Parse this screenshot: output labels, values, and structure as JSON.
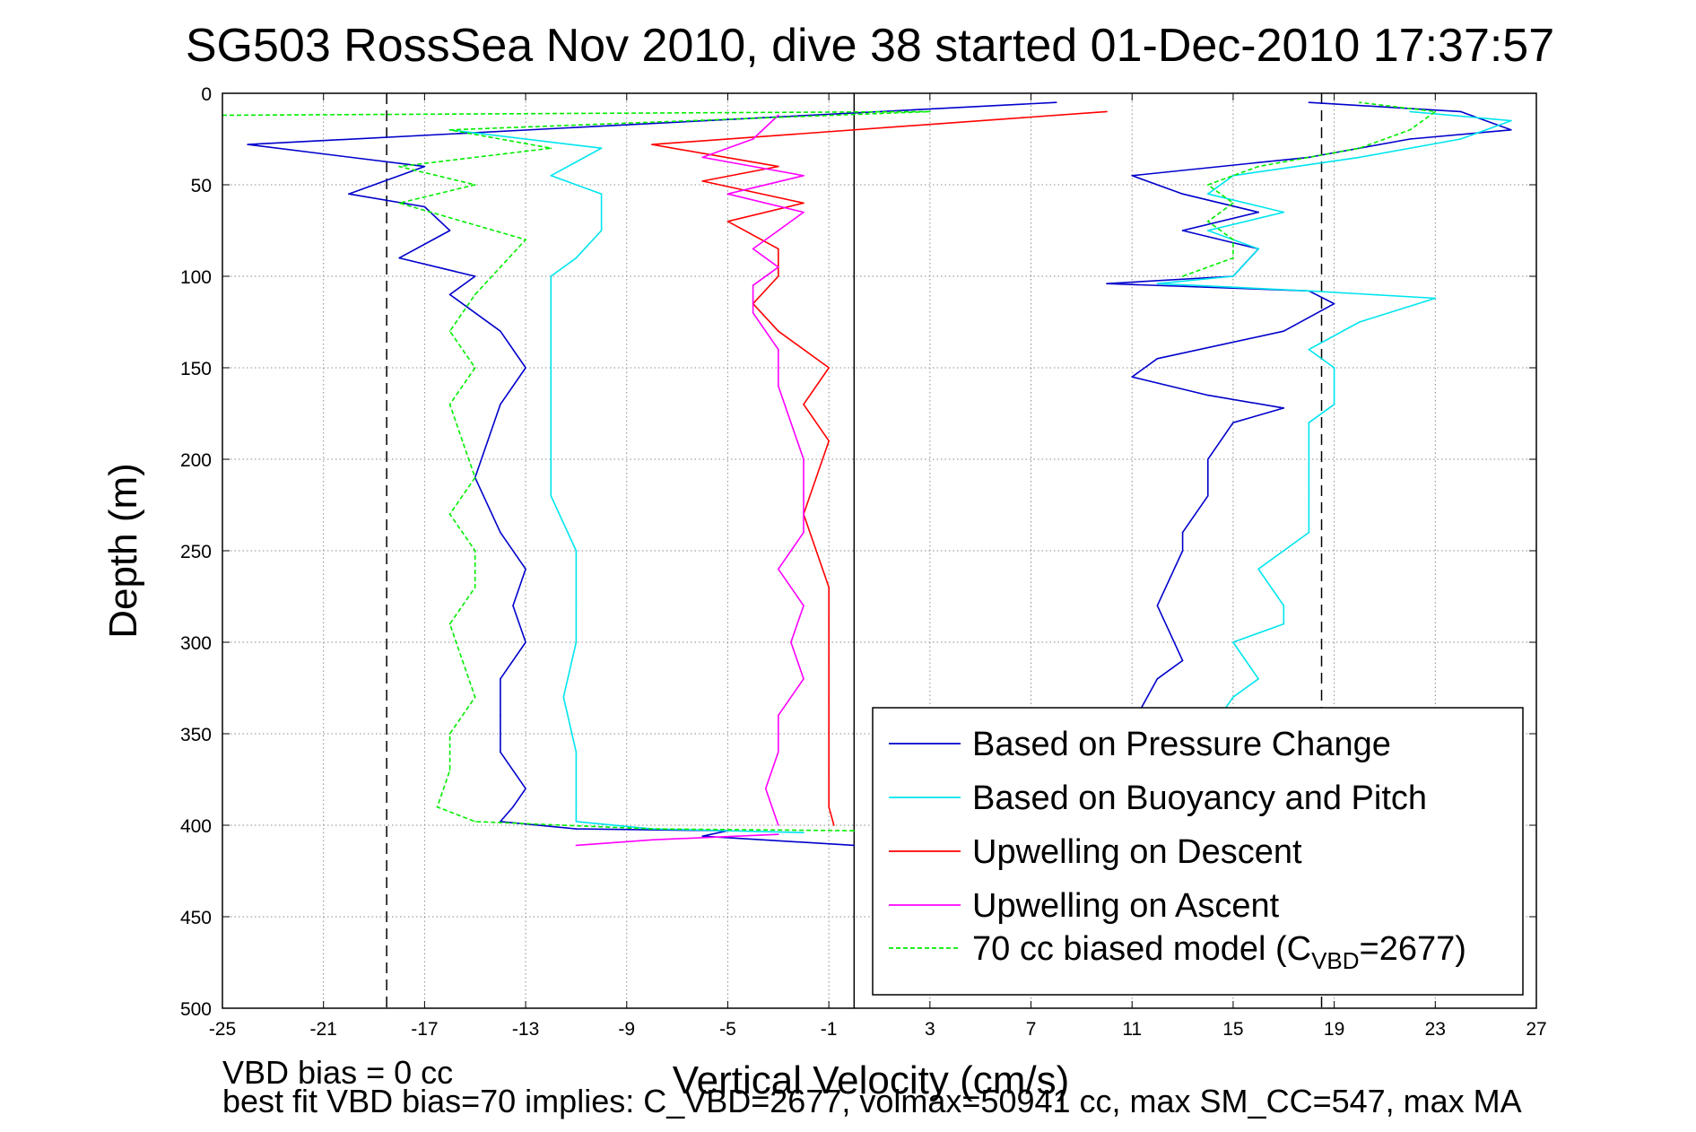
{
  "chart_data": {
    "type": "line",
    "title": "SG503 RossSea Nov 2010, dive 38 started 01-Dec-2010 17:37:57",
    "xlabel": "Vertical Velocity (cm/s)",
    "ylabel": "Depth (m)",
    "xlim": [
      -25,
      27
    ],
    "ylim": [
      500,
      0
    ],
    "y_reversed": true,
    "grid": true,
    "xticks": [
      "-25",
      "-21",
      "-17",
      "-13",
      "-9",
      "-5",
      "-1",
      "3",
      "7",
      "11",
      "15",
      "19",
      "23",
      "27"
    ],
    "yticks": [
      "0",
      "50",
      "100",
      "150",
      "200",
      "250",
      "300",
      "350",
      "400",
      "450",
      "500"
    ],
    "reference_lines": [
      {
        "x": -18.5,
        "style": "dashed",
        "color": "#000000"
      },
      {
        "x": 18.5,
        "style": "dashed",
        "color": "#000000"
      },
      {
        "x": 0,
        "style": "solid",
        "color": "#000000"
      }
    ],
    "legend_placement": "lower-right",
    "series": [
      {
        "name": "Based on Pressure Change",
        "color": "#0000cc",
        "dash": "solid",
        "leg": "down",
        "points": [
          [
            8,
            5
          ],
          [
            -24,
            28
          ],
          [
            -17,
            40
          ],
          [
            -20,
            55
          ],
          [
            -17,
            62
          ],
          [
            -16,
            75
          ],
          [
            -18,
            90
          ],
          [
            -15,
            100
          ],
          [
            -16,
            110
          ],
          [
            -14,
            130
          ],
          [
            -13,
            150
          ],
          [
            -14,
            170
          ],
          [
            -14.5,
            190
          ],
          [
            -15,
            210
          ],
          [
            -14,
            240
          ],
          [
            -13,
            260
          ],
          [
            -13.5,
            280
          ],
          [
            -13,
            300
          ],
          [
            -14,
            320
          ],
          [
            -14,
            340
          ],
          [
            -14,
            360
          ],
          [
            -13,
            380
          ],
          [
            -13.5,
            390
          ],
          [
            -14,
            398
          ],
          [
            -11,
            402
          ],
          [
            -5,
            403
          ],
          [
            -6,
            406
          ],
          [
            0,
            411
          ]
        ]
      },
      {
        "name": "Based on Pressure Change",
        "color": "#0000cc",
        "dash": "solid",
        "leg": "up",
        "points": [
          [
            11.2,
            340
          ],
          [
            12,
            320
          ],
          [
            13,
            310
          ],
          [
            12,
            280
          ],
          [
            13,
            250
          ],
          [
            13,
            240
          ],
          [
            14,
            220
          ],
          [
            14,
            200
          ],
          [
            15,
            180
          ],
          [
            17,
            172
          ],
          [
            14,
            165
          ],
          [
            11,
            155
          ],
          [
            12,
            145
          ],
          [
            17,
            130
          ],
          [
            19,
            115
          ],
          [
            18,
            108
          ],
          [
            10,
            104
          ],
          [
            15,
            100
          ],
          [
            16,
            85
          ],
          [
            13,
            75
          ],
          [
            16,
            65
          ],
          [
            13,
            55
          ],
          [
            11,
            45
          ],
          [
            18,
            35
          ],
          [
            22,
            25
          ],
          [
            26,
            20
          ],
          [
            24,
            10
          ],
          [
            18,
            5
          ]
        ]
      },
      {
        "name": "Based on Buoyancy and Pitch",
        "color": "#00e5ee",
        "dash": "solid",
        "leg": "down",
        "points": [
          [
            -16,
            20
          ],
          [
            -10,
            30
          ],
          [
            -12,
            45
          ],
          [
            -10,
            55
          ],
          [
            -10,
            75
          ],
          [
            -11,
            90
          ],
          [
            -12,
            100
          ],
          [
            -12,
            120
          ],
          [
            -12,
            140
          ],
          [
            -12,
            160
          ],
          [
            -12,
            190
          ],
          [
            -12,
            220
          ],
          [
            -11,
            250
          ],
          [
            -11,
            280
          ],
          [
            -11,
            300
          ],
          [
            -11.5,
            330
          ],
          [
            -11,
            360
          ],
          [
            -11,
            390
          ],
          [
            -11,
            398
          ],
          [
            -8,
            402
          ],
          [
            -2,
            404
          ]
        ]
      },
      {
        "name": "Based on Buoyancy and Pitch",
        "color": "#00e5ee",
        "dash": "solid",
        "leg": "up",
        "points": [
          [
            14.5,
            340
          ],
          [
            15,
            330
          ],
          [
            16,
            320
          ],
          [
            15,
            300
          ],
          [
            17,
            290
          ],
          [
            17,
            280
          ],
          [
            16,
            260
          ],
          [
            18,
            240
          ],
          [
            18,
            220
          ],
          [
            18,
            200
          ],
          [
            18,
            180
          ],
          [
            19,
            170
          ],
          [
            19,
            150
          ],
          [
            18,
            140
          ],
          [
            20,
            125
          ],
          [
            23,
            112
          ],
          [
            18,
            108
          ],
          [
            12,
            104
          ],
          [
            15,
            100
          ],
          [
            16,
            85
          ],
          [
            14,
            75
          ],
          [
            17,
            65
          ],
          [
            14,
            55
          ],
          [
            15,
            45
          ],
          [
            20,
            35
          ],
          [
            24,
            25
          ],
          [
            26,
            15
          ],
          [
            22,
            10
          ]
        ]
      },
      {
        "name": "Upwelling on Descent",
        "color": "#ff0000",
        "dash": "solid",
        "leg": "down",
        "points": [
          [
            10,
            10
          ],
          [
            -8,
            28
          ],
          [
            -3,
            40
          ],
          [
            -6,
            48
          ],
          [
            -2,
            60
          ],
          [
            -5,
            70
          ],
          [
            -3,
            85
          ],
          [
            -3,
            100
          ],
          [
            -4,
            115
          ],
          [
            -3,
            130
          ],
          [
            -1,
            150
          ],
          [
            -2,
            170
          ],
          [
            -1,
            190
          ],
          [
            -1.5,
            210
          ],
          [
            -2,
            230
          ],
          [
            -1.5,
            250
          ],
          [
            -1,
            270
          ],
          [
            -1,
            290
          ],
          [
            -1,
            310
          ],
          [
            -1,
            330
          ],
          [
            -1,
            350
          ],
          [
            -1,
            370
          ],
          [
            -1,
            390
          ],
          [
            -0.8,
            400
          ]
        ]
      },
      {
        "name": "Upwelling on Ascent",
        "color": "#ff00ff",
        "dash": "solid",
        "leg": "down",
        "points": [
          [
            -3,
            405
          ],
          [
            -8,
            408
          ],
          [
            -11,
            411
          ]
        ]
      },
      {
        "name": "Upwelling on Ascent",
        "color": "#ff00ff",
        "dash": "solid",
        "leg": "up",
        "points": [
          [
            -3,
            400
          ],
          [
            -3.5,
            380
          ],
          [
            -3,
            360
          ],
          [
            -3,
            340
          ],
          [
            -2,
            320
          ],
          [
            -2.5,
            300
          ],
          [
            -2,
            280
          ],
          [
            -3,
            260
          ],
          [
            -2,
            240
          ],
          [
            -2,
            220
          ],
          [
            -2,
            200
          ],
          [
            -2.5,
            180
          ],
          [
            -3,
            160
          ],
          [
            -3,
            140
          ],
          [
            -4,
            120
          ],
          [
            -4,
            105
          ],
          [
            -3,
            95
          ],
          [
            -4,
            85
          ],
          [
            -3,
            75
          ],
          [
            -2,
            65
          ],
          [
            -5,
            55
          ],
          [
            -2,
            45
          ],
          [
            -6,
            35
          ],
          [
            -4,
            25
          ],
          [
            -3,
            12
          ]
        ]
      },
      {
        "name": "70 cc biased model (C_VBD=2677)",
        "color": "#00ee00",
        "dash": "dashed",
        "leg": "down",
        "points": [
          [
            -25,
            12
          ],
          [
            3,
            10
          ],
          [
            -16,
            20
          ],
          [
            -12,
            30
          ],
          [
            -18,
            40
          ],
          [
            -15,
            50
          ],
          [
            -18,
            60
          ],
          [
            -13,
            80
          ],
          [
            -14,
            95
          ],
          [
            -15,
            110
          ],
          [
            -16,
            130
          ],
          [
            -15,
            150
          ],
          [
            -16,
            170
          ],
          [
            -15.5,
            190
          ],
          [
            -15,
            210
          ],
          [
            -16,
            230
          ],
          [
            -15,
            250
          ],
          [
            -15,
            270
          ],
          [
            -16,
            290
          ],
          [
            -15.5,
            310
          ],
          [
            -15,
            330
          ],
          [
            -16,
            350
          ],
          [
            -16,
            370
          ],
          [
            -16.5,
            390
          ],
          [
            -15,
            398
          ],
          [
            -8,
            402
          ],
          [
            0,
            403
          ]
        ]
      },
      {
        "name": "70 cc biased model (C_VBD=2677)",
        "color": "#00ee00",
        "dash": "dashed",
        "leg": "up",
        "points": [
          [
            13,
            100
          ],
          [
            15,
            90
          ],
          [
            15,
            80
          ],
          [
            14,
            70
          ],
          [
            15,
            60
          ],
          [
            14,
            50
          ],
          [
            16,
            40
          ],
          [
            20,
            30
          ],
          [
            22,
            20
          ],
          [
            23,
            10
          ],
          [
            20,
            5
          ]
        ]
      }
    ],
    "legend": [
      {
        "label": "Based on Pressure Change",
        "color": "#0000cc",
        "dash": "solid"
      },
      {
        "label": "Based on Buoyancy and Pitch",
        "color": "#00e5ee",
        "dash": "solid"
      },
      {
        "label": "Upwelling on Descent",
        "color": "#ff0000",
        "dash": "solid"
      },
      {
        "label": "Upwelling on Ascent",
        "color": "#ff00ff",
        "dash": "solid"
      },
      {
        "label": "70 cc biased model (C",
        "sub": "VBD",
        "suffix": "=2677)",
        "color": "#00ee00",
        "dash": "dashed"
      }
    ],
    "annotations": [
      "VBD bias = 0 cc",
      "best fit VBD bias=70 implies: C_VBD=2677, volmax=50941 cc, max SM_CC=547, max MA"
    ]
  }
}
